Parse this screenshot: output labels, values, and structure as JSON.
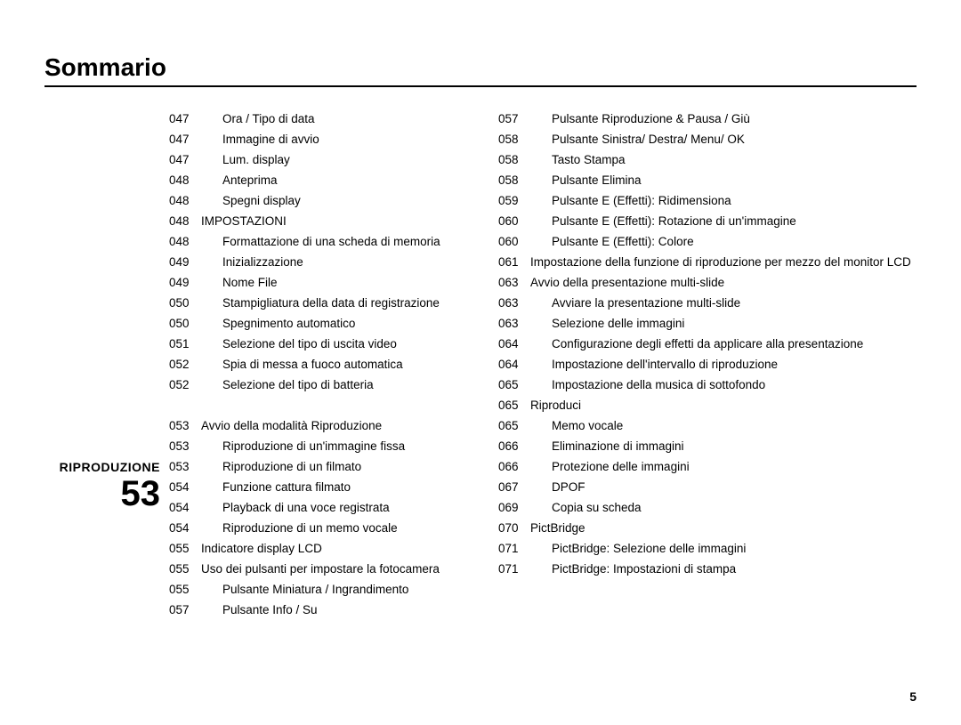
{
  "title": "Sommario",
  "page_number": "5",
  "section": {
    "name": "RIPRODUZIONE",
    "number": "53"
  },
  "left_column": [
    {
      "page": "047",
      "text": "Ora / Tipo di data",
      "indent": true
    },
    {
      "page": "047",
      "text": "Immagine di avvio",
      "indent": true
    },
    {
      "page": "047",
      "text": "Lum. display",
      "indent": true
    },
    {
      "page": "048",
      "text": "Anteprima",
      "indent": true
    },
    {
      "page": "048",
      "text": "Spegni display",
      "indent": true
    },
    {
      "page": "048",
      "text": "IMPOSTAZIONI",
      "indent": false
    },
    {
      "page": "048",
      "text": "Formattazione di una scheda di memoria",
      "indent": true
    },
    {
      "page": "049",
      "text": "Inizializzazione",
      "indent": true
    },
    {
      "page": "049",
      "text": "Nome File",
      "indent": true
    },
    {
      "page": "050",
      "text": "Stampigliatura della data di registrazione",
      "indent": true
    },
    {
      "page": "050",
      "text": "Spegnimento automatico",
      "indent": true
    },
    {
      "page": "051",
      "text": "Selezione del tipo di uscita video",
      "indent": true
    },
    {
      "page": "052",
      "text": "Spia di messa a fuoco automatica",
      "indent": true
    },
    {
      "page": "052",
      "text": "Selezione del tipo di batteria",
      "indent": true
    }
  ],
  "left_column_2": [
    {
      "page": "053",
      "text": "Avvio della modalità Riproduzione",
      "indent": false
    },
    {
      "page": "053",
      "text": "Riproduzione di un'immagine fissa",
      "indent": true
    },
    {
      "page": "053",
      "text": "Riproduzione di un filmato",
      "indent": true
    },
    {
      "page": "054",
      "text": "Funzione cattura filmato",
      "indent": true
    },
    {
      "page": "054",
      "text": "Playback di una voce registrata",
      "indent": true
    },
    {
      "page": "054",
      "text": "Riproduzione di un memo vocale",
      "indent": true
    },
    {
      "page": "055",
      "text": "Indicatore display LCD",
      "indent": false
    },
    {
      "page": "055",
      "text": "Uso dei pulsanti per impostare la fotocamera",
      "indent": false
    },
    {
      "page": "055",
      "text": "Pulsante Miniatura / Ingrandimento",
      "indent": true
    },
    {
      "page": "057",
      "text": "Pulsante Info / Su",
      "indent": true
    }
  ],
  "right_column": [
    {
      "page": "057",
      "text": "Pulsante Riproduzione & Pausa / Giù",
      "indent": true
    },
    {
      "page": "058",
      "text": "Pulsante Sinistra/ Destra/ Menu/ OK",
      "indent": true
    },
    {
      "page": "058",
      "text": "Tasto Stampa",
      "indent": true
    },
    {
      "page": "058",
      "text": "Pulsante Elimina",
      "indent": true
    },
    {
      "page": "059",
      "text": "Pulsante E (Effetti): Ridimensiona",
      "indent": true
    },
    {
      "page": "060",
      "text": "Pulsante E (Effetti): Rotazione di un'immagine",
      "indent": true
    },
    {
      "page": "060",
      "text": "Pulsante E (Effetti): Colore",
      "indent": true
    },
    {
      "page": "061",
      "text": "Impostazione della funzione di riproduzione per mezzo del monitor LCD",
      "indent": false
    },
    {
      "page": "063",
      "text": "Avvio della presentazione multi-slide",
      "indent": false
    },
    {
      "page": "063",
      "text": "Avviare la presentazione multi-slide",
      "indent": true
    },
    {
      "page": "063",
      "text": "Selezione delle immagini",
      "indent": true
    },
    {
      "page": "064",
      "text": "Configurazione degli effetti da applicare alla presentazione",
      "indent": true
    },
    {
      "page": "064",
      "text": "Impostazione dell'intervallo di riproduzione",
      "indent": true
    },
    {
      "page": "065",
      "text": "Impostazione della musica di sottofondo",
      "indent": true
    },
    {
      "page": "065",
      "text": "Riproduci",
      "indent": false
    },
    {
      "page": "065",
      "text": "Memo vocale",
      "indent": true
    },
    {
      "page": "066",
      "text": "Eliminazione di immagini",
      "indent": true
    },
    {
      "page": "066",
      "text": "Protezione delle immagini",
      "indent": true
    },
    {
      "page": "067",
      "text": "DPOF",
      "indent": true
    },
    {
      "page": "069",
      "text": "Copia su scheda",
      "indent": true
    },
    {
      "page": "070",
      "text": "PictBridge",
      "indent": false
    },
    {
      "page": "071",
      "text": "PictBridge: Selezione delle immagini",
      "indent": true
    },
    {
      "page": "071",
      "text": "PictBridge: Impostazioni di stampa",
      "indent": true
    }
  ]
}
